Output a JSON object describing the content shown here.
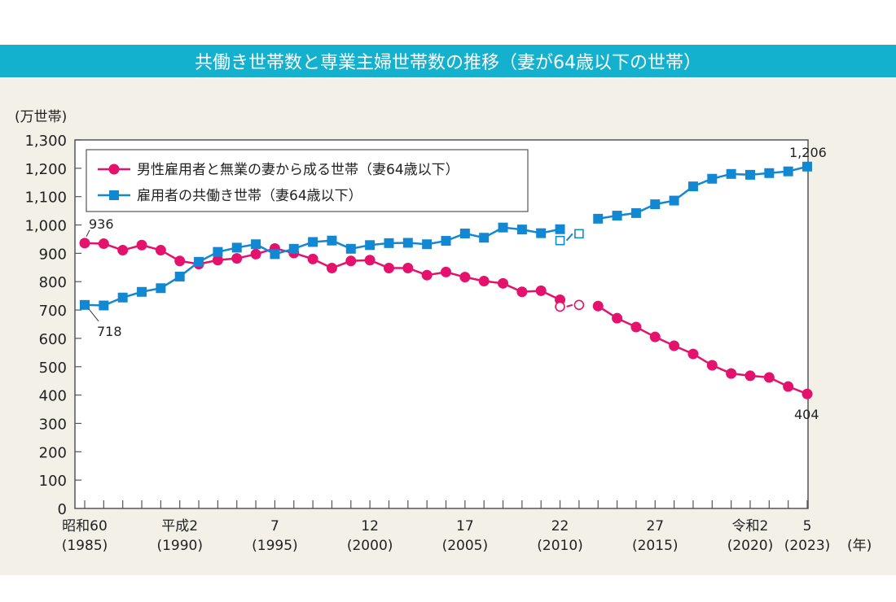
{
  "title": "共働き世帯数と専業主婦世帯数の推移（妻が64歳以下の世帯）",
  "colors": {
    "header": "#14b1cf",
    "panel_bg": "#f3f0e8",
    "single_income": "#e4126d",
    "dual_income": "#1388d2"
  },
  "chart_data": {
    "type": "line",
    "title": "共働き世帯数と専業主婦世帯数の推移（妻が64歳以下の世帯）",
    "ylabel": "(万世帯)",
    "xlabel": "(年)",
    "ylim": [
      0,
      1300
    ],
    "xlim": [
      1985,
      2023
    ],
    "yticks": [
      0,
      100,
      200,
      300,
      400,
      500,
      600,
      700,
      800,
      900,
      1000,
      1100,
      1200,
      1300
    ],
    "ytick_labels": [
      "0",
      "100",
      "200",
      "300",
      "400",
      "500",
      "600",
      "700",
      "800",
      "900",
      "1,000",
      "1,100",
      "1,200",
      "1,300"
    ],
    "xticks": [
      {
        "year": 1985,
        "era": "昭和60",
        "western": "(1985)"
      },
      {
        "year": 1990,
        "era": "平成2",
        "western": "(1990)"
      },
      {
        "year": 1995,
        "era": "7",
        "western": "(1995)"
      },
      {
        "year": 2000,
        "era": "12",
        "western": "(2000)"
      },
      {
        "year": 2005,
        "era": "17",
        "western": "(2005)"
      },
      {
        "year": 2010,
        "era": "22",
        "western": "(2010)"
      },
      {
        "year": 2015,
        "era": "27",
        "western": "(2015)"
      },
      {
        "year": 2020,
        "era": "令和2",
        "western": "(2020)"
      },
      {
        "year": 2023,
        "era": "5",
        "western": "(2023)"
      }
    ],
    "grid": false,
    "legend_position": "top-left",
    "series": [
      {
        "name": "男性雇用者と無業の妻から成る世帯（妻64歳以下）",
        "marker": "circle",
        "segments": [
          {
            "x": [
              1985,
              1986,
              1987,
              1988,
              1989,
              1990,
              1991,
              1992,
              1993,
              1994,
              1995,
              1996,
              1997,
              1998,
              1999,
              2000,
              2001,
              2002,
              2003,
              2004,
              2005,
              2006,
              2007,
              2008,
              2009,
              2010
            ],
            "y": [
              936,
              934,
              911,
              929,
              911,
              873,
              862,
              876,
              882,
              897,
              917,
              901,
              880,
              848,
              873,
              876,
              848,
              848,
              823,
              834,
              816,
              802,
              794,
              764,
              768,
              736
            ]
          },
          {
            "x": [
              2012,
              2013,
              2014,
              2015,
              2016,
              2017,
              2018,
              2019,
              2020,
              2021,
              2022,
              2023
            ],
            "y": [
              714,
              671,
              640,
              605,
              574,
              545,
              505,
              476,
              468,
              462,
              430,
              404
            ]
          }
        ],
        "open_points": {
          "x": [
            2010,
            2011
          ],
          "y": [
            712,
            718
          ]
        }
      },
      {
        "name": "雇用者の共働き世帯（妻64歳以下）",
        "marker": "square",
        "segments": [
          {
            "x": [
              1985,
              1986,
              1987,
              1988,
              1989,
              1990,
              1991,
              1992,
              1993,
              1994,
              1995,
              1996,
              1997,
              1998,
              1999,
              2000,
              2001,
              2002,
              2003,
              2004,
              2005,
              2006,
              2007,
              2008,
              2009,
              2010
            ],
            "y": [
              718,
              716,
              744,
              764,
              777,
              818,
              870,
              905,
              920,
              932,
              897,
              916,
              940,
              945,
              916,
              929,
              936,
              937,
              932,
              944,
              970,
              955,
              991,
              984,
              971,
              985
            ]
          },
          {
            "x": [
              2012,
              2013,
              2014,
              2015,
              2016,
              2017,
              2018,
              2019,
              2020,
              2021,
              2022,
              2023
            ],
            "y": [
              1022,
              1033,
              1042,
              1073,
              1086,
              1136,
              1163,
              1180,
              1177,
              1183,
              1189,
              1206
            ]
          }
        ],
        "open_points": {
          "x": [
            2010,
            2011
          ],
          "y": [
            945,
            969
          ]
        }
      }
    ],
    "annotations": [
      {
        "text": "936",
        "series": 0,
        "x": 1985
      },
      {
        "text": "718",
        "series": 1,
        "x": 1985
      },
      {
        "text": "1,206",
        "series": 1,
        "x": 2023
      },
      {
        "text": "404",
        "series": 0,
        "x": 2023
      }
    ]
  }
}
